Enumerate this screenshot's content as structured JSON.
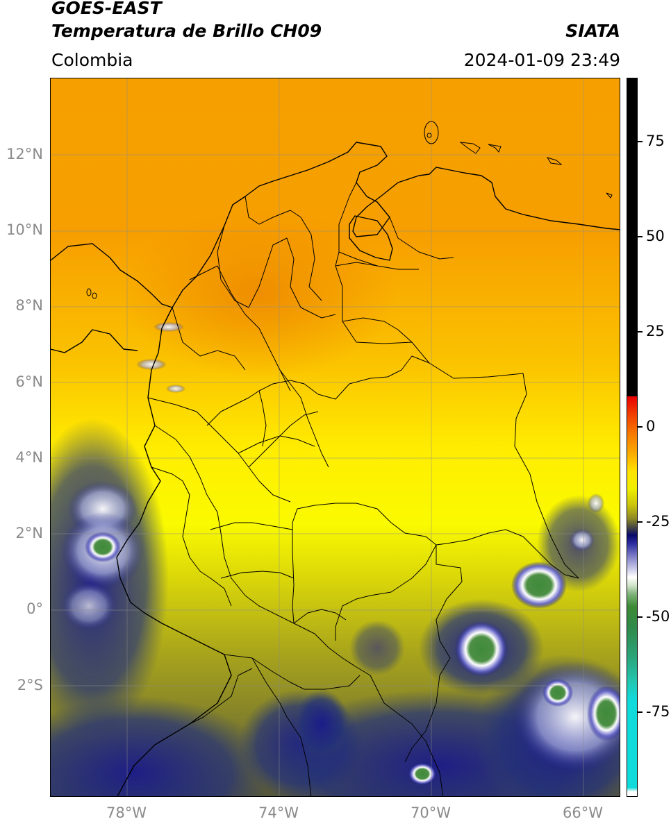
{
  "header": {
    "satellite": "GOES-EAST",
    "product": "Temperatura de Brillo CH09",
    "region": "Colombia",
    "agency": "SIATA",
    "datetime": "2024-01-09 23:49"
  },
  "map": {
    "lat_labels": [
      "12°N",
      "10°N",
      "8°N",
      "6°N",
      "4°N",
      "2°N",
      "0°",
      "2°S"
    ],
    "lon_labels": [
      "78°W",
      "74°W",
      "70°W",
      "66°W"
    ]
  },
  "colorbar": {
    "labels": [
      "75",
      "50",
      "25",
      "0",
      "-25",
      "-50",
      "-75"
    ],
    "values": [
      75,
      50,
      25,
      0,
      -25,
      -50,
      -75
    ]
  }
}
